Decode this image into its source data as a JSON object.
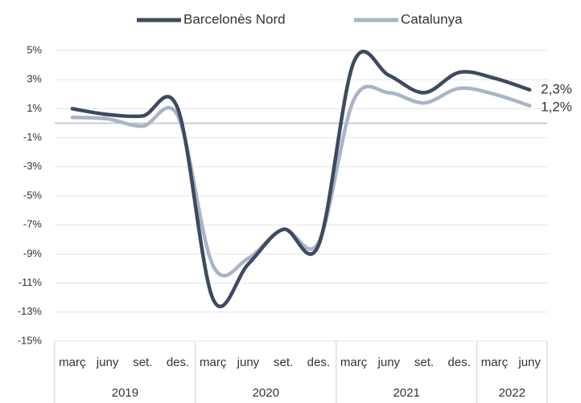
{
  "chart_data": {
    "type": "line",
    "categories": [
      "març",
      "juny",
      "set.",
      "des.",
      "març",
      "juny",
      "set.",
      "des.",
      "març",
      "juny",
      "set.",
      "des.",
      "març",
      "juny"
    ],
    "groups": [
      {
        "label": "2019",
        "span": 4
      },
      {
        "label": "2020",
        "span": 4
      },
      {
        "label": "2021",
        "span": 4
      },
      {
        "label": "2022",
        "span": 2
      }
    ],
    "series": [
      {
        "name": "Barcelonès Nord",
        "color": "#3d4a5f",
        "values": [
          1.0,
          0.6,
          0.5,
          1.0,
          -12.1,
          -9.7,
          -7.3,
          -8.4,
          4.2,
          3.3,
          2.1,
          3.5,
          3.1,
          2.3
        ],
        "value_labels": [
          null,
          null,
          null,
          null,
          null,
          null,
          null,
          null,
          null,
          null,
          null,
          null,
          null,
          "2,3%"
        ]
      },
      {
        "name": "Catalunya",
        "color": "#a9b4c8",
        "values": [
          0.4,
          0.3,
          -0.2,
          0.5,
          -9.8,
          -9.3,
          -7.3,
          -8.2,
          1.6,
          2.1,
          1.4,
          2.4,
          2.0,
          1.2
        ],
        "value_labels": [
          null,
          null,
          null,
          null,
          null,
          null,
          null,
          null,
          null,
          null,
          null,
          null,
          null,
          "1,2%"
        ]
      }
    ],
    "ylim": [
      -15,
      5
    ],
    "yticks": [
      {
        "value": 5,
        "label": "5%"
      },
      {
        "value": 3,
        "label": "3%"
      },
      {
        "value": 1,
        "label": "1%"
      },
      {
        "value": -1,
        "label": "-1%"
      },
      {
        "value": -3,
        "label": "-3%"
      },
      {
        "value": -5,
        "label": "-5%"
      },
      {
        "value": -7,
        "label": "-7%"
      },
      {
        "value": -9,
        "label": "-9%"
      },
      {
        "value": -11,
        "label": "-11%"
      },
      {
        "value": -13,
        "label": "-13%"
      },
      {
        "value": -15,
        "label": "-15%"
      }
    ],
    "grid": true,
    "legend": "top"
  }
}
